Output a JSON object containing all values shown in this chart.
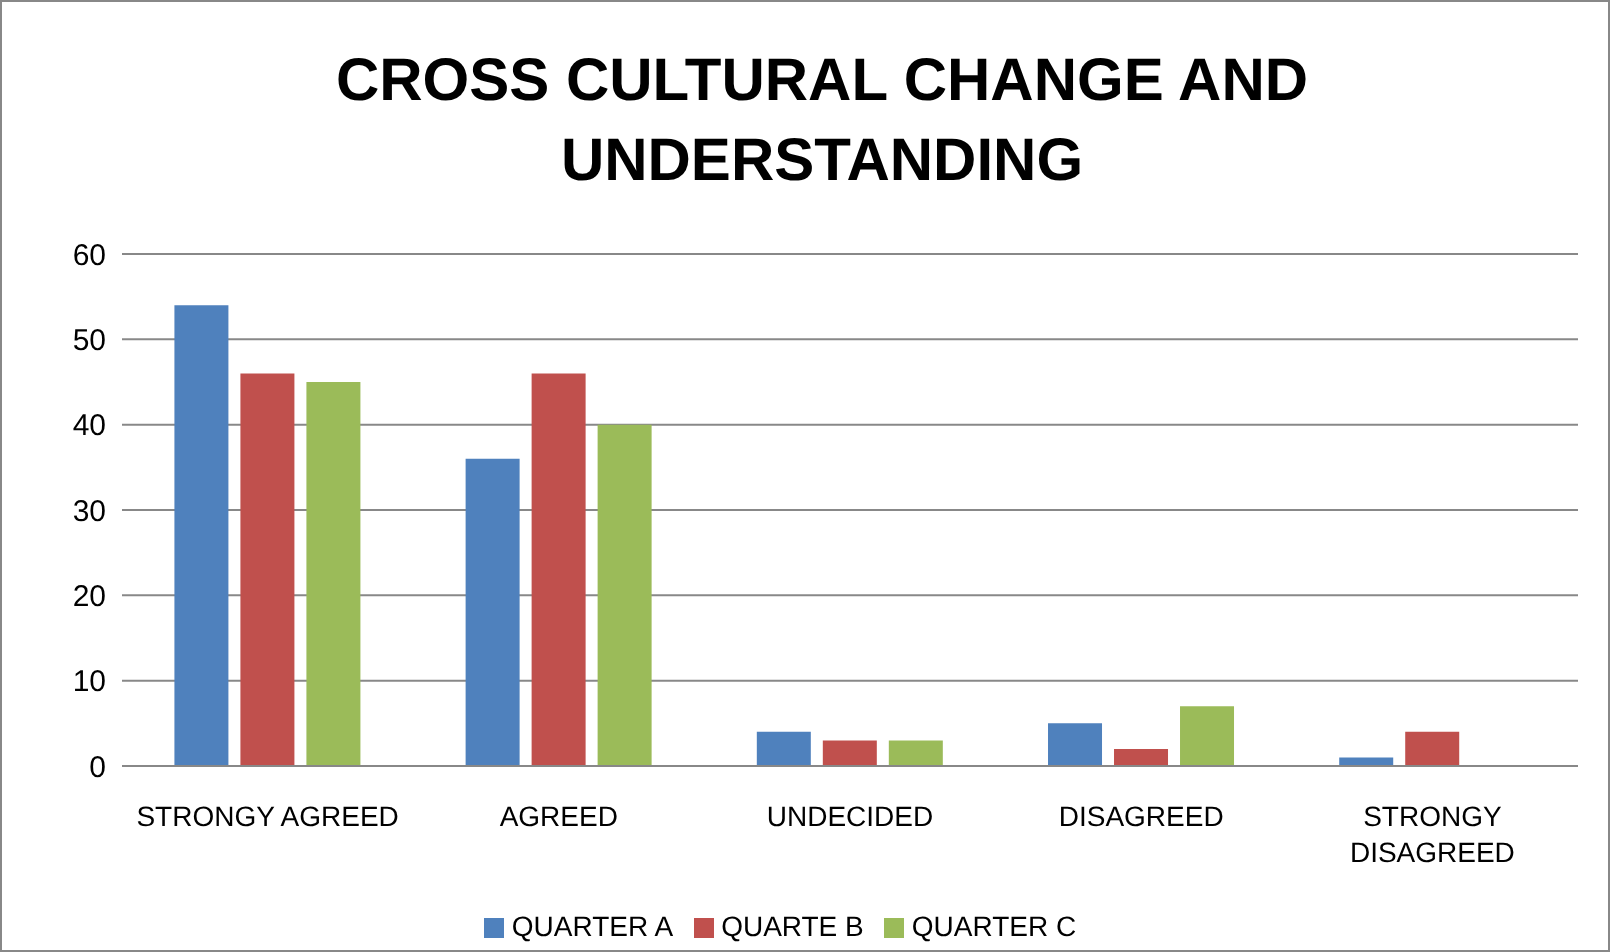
{
  "chart_data": {
    "type": "bar",
    "title": "CROSS CULTURAL CHANGE AND UNDERSTANDING",
    "categories": [
      "STRONGY AGREED",
      "AGREED",
      "UNDECIDED",
      "DISAGREED",
      "STRONGY DISAGREED"
    ],
    "series": [
      {
        "name": "QUARTER A",
        "color": "#4f81bd",
        "values": [
          54,
          36,
          4,
          5,
          1
        ]
      },
      {
        "name": "QUARTE B",
        "color": "#c0504d",
        "values": [
          46,
          46,
          3,
          2,
          4
        ]
      },
      {
        "name": "QUARTER C",
        "color": "#9bbb59",
        "values": [
          45,
          40,
          3,
          7,
          0
        ]
      }
    ],
    "ylim": [
      0,
      60
    ],
    "yticks": [
      0,
      10,
      20,
      30,
      40,
      50,
      60
    ],
    "grid": "y",
    "legend": "bottom"
  }
}
